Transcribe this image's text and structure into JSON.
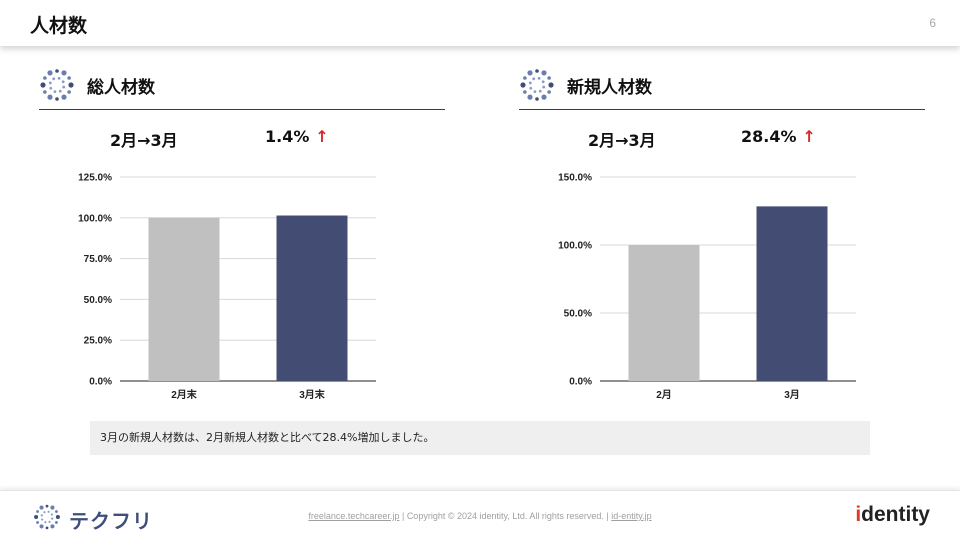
{
  "header": {
    "title": "人材数",
    "page_number": "6"
  },
  "sections": [
    {
      "title": "総人材数",
      "period": "2月→3月",
      "change": "1.4%",
      "arrow": "↑",
      "chart_data": {
        "type": "bar",
        "categories": [
          "2月末",
          "3月末"
        ],
        "values": [
          100.0,
          101.4
        ],
        "ylim": [
          0,
          125
        ],
        "yticks": [
          "0.0%",
          "25.0%",
          "50.0%",
          "75.0%",
          "100.0%",
          "125.0%"
        ],
        "colors": [
          "#c0c0c0",
          "#434d73"
        ],
        "grid": true
      }
    },
    {
      "title": "新規人材数",
      "period": "2月→3月",
      "change": "28.4%",
      "arrow": "↑",
      "chart_data": {
        "type": "bar",
        "categories": [
          "2月",
          "3月"
        ],
        "values": [
          100.0,
          128.4
        ],
        "ylim": [
          0,
          150
        ],
        "yticks": [
          "0.0%",
          "50.0%",
          "100.0%",
          "150.0%"
        ],
        "colors": [
          "#c0c0c0",
          "#434d73"
        ],
        "grid": true
      }
    }
  ],
  "note": "3月の新規人材数は、2月新規人材数と比べて28.4%増加しました。",
  "footer": {
    "brand": "テクフリ",
    "link1": "freelance.techcareer.jp",
    "sep1": "|",
    "copyright": "Copyright © 2024 identity, Ltd. All rights reserved.",
    "sep2": "|",
    "link2": "id-entity.jp",
    "logo_i": "i",
    "logo_rest": "dentity"
  },
  "colors": {
    "accent": "#3f4e7a",
    "arrow": "#d62a2a",
    "bar_prev": "#c0c0c0",
    "bar_curr": "#434d73"
  }
}
